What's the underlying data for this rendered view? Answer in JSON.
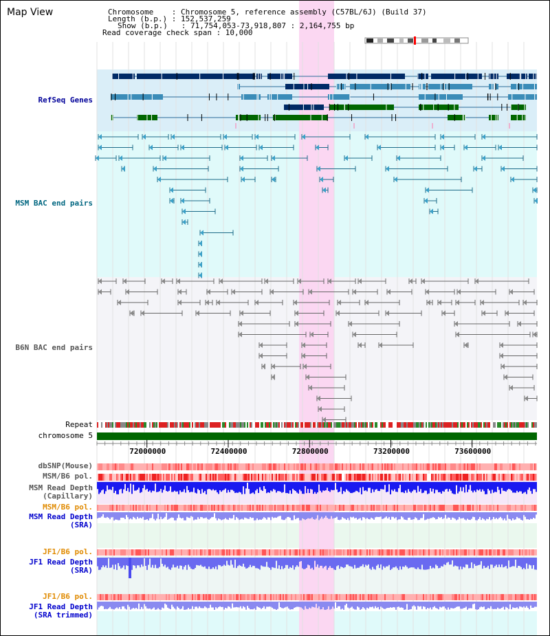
{
  "header": {
    "title": "Map View",
    "info_lines": [
      "Chromosome    : Chromosome 5, reference assembly (C57BL/6J) (Build 37)",
      "Length (b.p.) : 152,537,259",
      "Show (b.p.)   : 71,754,053-73,918,807 : 2,164,755 bp",
      "Read coverage check span : 10,000"
    ]
  },
  "tracks": {
    "refseq": "RefSeq Genes",
    "msm_bac": "MSM BAC end pairs",
    "b6n_bac": "B6N BAC end pairs",
    "repeat": "Repeat",
    "chromosome": "chromosome 5",
    "dbsnp": "dbSNP(Mouse)",
    "msm_b6_pol_1": "MSM/B6 pol.",
    "msm_depth_cap": [
      "MSM Read Depth",
      "(Capillary)"
    ],
    "msm_b6_pol_2": "MSM/B6 pol.",
    "msm_depth_sra": [
      "MSM Read Depth",
      "(SRA)"
    ],
    "jf1_b6_pol_1": "JF1/B6 pol.",
    "jf1_depth_sra": [
      "JF1 Read Depth",
      "(SRA)"
    ],
    "jf1_b6_pol_2": "JF1/B6 pol.",
    "jf1_depth_trim": [
      "JF1 Read Depth",
      "(SRA trimmed)"
    ]
  },
  "axis": {
    "start": 71754053,
    "end": 73918807,
    "ticks": [
      "72000000",
      "72400000",
      "72800000",
      "73200000",
      "73600000"
    ]
  },
  "colors": {
    "refseq_bg": "#daeef8",
    "msm_bg": "#e0fafa",
    "b6n_bg": "#f4f4f8",
    "highlight": "#fbd7f2",
    "gene_dark": "#002a66",
    "gene_mid": "#3a8cb8",
    "gene_green": "#006600",
    "chromosome": "#006600",
    "depth_blue": "#1a1af0",
    "depth_lavender": "#8a8af0",
    "pol_red": "#ff5555"
  }
}
